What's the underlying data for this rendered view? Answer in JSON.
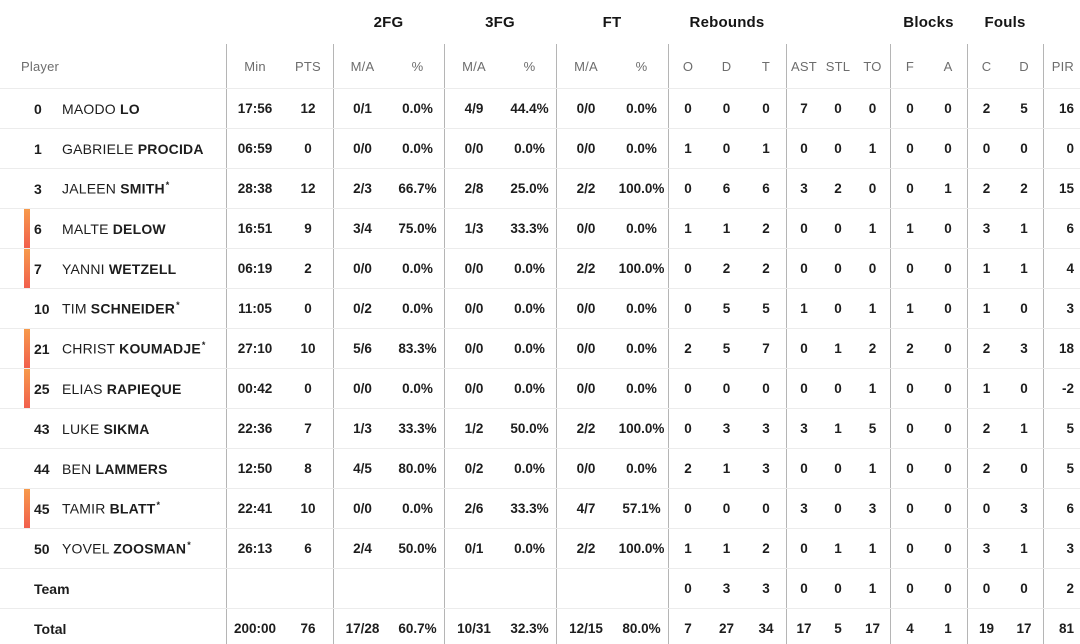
{
  "table": {
    "group_headers": {
      "fg2": "2FG",
      "fg3": "3FG",
      "ft": "FT",
      "rebounds": "Rebounds",
      "blocks": "Blocks",
      "fouls": "Fouls"
    },
    "column_headers": {
      "player": "Player",
      "min": "Min",
      "pts": "PTS",
      "fg2_ma": "M/A",
      "fg2_pct": "%",
      "fg3_ma": "M/A",
      "fg3_pct": "%",
      "ft_ma": "M/A",
      "ft_pct": "%",
      "reb_o": "O",
      "reb_d": "D",
      "reb_t": "T",
      "ast": "AST",
      "stl": "STL",
      "to": "TO",
      "blk_f": "F",
      "blk_a": "A",
      "foul_c": "C",
      "foul_d": "D",
      "pir": "PIR"
    },
    "column_keys": [
      "min",
      "pts",
      "fg2_ma",
      "fg2_pct",
      "fg3_ma",
      "fg3_pct",
      "ft_ma",
      "ft_pct",
      "reb_o",
      "reb_d",
      "reb_t",
      "ast",
      "stl",
      "to",
      "blk_f",
      "blk_a",
      "foul_c",
      "foul_d",
      "pir"
    ],
    "separator_keys": [
      "min",
      "fg2_ma",
      "fg3_ma",
      "ft_ma",
      "reb_o",
      "ast",
      "blk_f",
      "foul_c",
      "pir"
    ],
    "starter_mark": "*",
    "colors": {
      "on_court_marker_top": "#f79a4b",
      "on_court_marker_bottom": "#f15f4d",
      "vertical_line": "#b5b5b5",
      "horizontal_line": "#ececec"
    },
    "players": [
      {
        "number": "0",
        "first": "MAODO",
        "last": "LO",
        "starter": false,
        "on_court": false,
        "min": "17:56",
        "pts": "12",
        "fg2_ma": "0/1",
        "fg2_pct": "0.0%",
        "fg3_ma": "4/9",
        "fg3_pct": "44.4%",
        "ft_ma": "0/0",
        "ft_pct": "0.0%",
        "reb_o": "0",
        "reb_d": "0",
        "reb_t": "0",
        "ast": "7",
        "stl": "0",
        "to": "0",
        "blk_f": "0",
        "blk_a": "0",
        "foul_c": "2",
        "foul_d": "5",
        "pir": "16"
      },
      {
        "number": "1",
        "first": "GABRIELE",
        "last": "PROCIDA",
        "starter": false,
        "on_court": false,
        "min": "06:59",
        "pts": "0",
        "fg2_ma": "0/0",
        "fg2_pct": "0.0%",
        "fg3_ma": "0/0",
        "fg3_pct": "0.0%",
        "ft_ma": "0/0",
        "ft_pct": "0.0%",
        "reb_o": "1",
        "reb_d": "0",
        "reb_t": "1",
        "ast": "0",
        "stl": "0",
        "to": "1",
        "blk_f": "0",
        "blk_a": "0",
        "foul_c": "0",
        "foul_d": "0",
        "pir": "0"
      },
      {
        "number": "3",
        "first": "JALEEN",
        "last": "SMITH",
        "starter": true,
        "on_court": false,
        "min": "28:38",
        "pts": "12",
        "fg2_ma": "2/3",
        "fg2_pct": "66.7%",
        "fg3_ma": "2/8",
        "fg3_pct": "25.0%",
        "ft_ma": "2/2",
        "ft_pct": "100.0%",
        "reb_o": "0",
        "reb_d": "6",
        "reb_t": "6",
        "ast": "3",
        "stl": "2",
        "to": "0",
        "blk_f": "0",
        "blk_a": "1",
        "foul_c": "2",
        "foul_d": "2",
        "pir": "15"
      },
      {
        "number": "6",
        "first": "MALTE",
        "last": "DELOW",
        "starter": false,
        "on_court": true,
        "min": "16:51",
        "pts": "9",
        "fg2_ma": "3/4",
        "fg2_pct": "75.0%",
        "fg3_ma": "1/3",
        "fg3_pct": "33.3%",
        "ft_ma": "0/0",
        "ft_pct": "0.0%",
        "reb_o": "1",
        "reb_d": "1",
        "reb_t": "2",
        "ast": "0",
        "stl": "0",
        "to": "1",
        "blk_f": "1",
        "blk_a": "0",
        "foul_c": "3",
        "foul_d": "1",
        "pir": "6"
      },
      {
        "number": "7",
        "first": "YANNI",
        "last": "WETZELL",
        "starter": false,
        "on_court": true,
        "min": "06:19",
        "pts": "2",
        "fg2_ma": "0/0",
        "fg2_pct": "0.0%",
        "fg3_ma": "0/0",
        "fg3_pct": "0.0%",
        "ft_ma": "2/2",
        "ft_pct": "100.0%",
        "reb_o": "0",
        "reb_d": "2",
        "reb_t": "2",
        "ast": "0",
        "stl": "0",
        "to": "0",
        "blk_f": "0",
        "blk_a": "0",
        "foul_c": "1",
        "foul_d": "1",
        "pir": "4"
      },
      {
        "number": "10",
        "first": "TIM",
        "last": "SCHNEIDER",
        "starter": true,
        "on_court": false,
        "min": "11:05",
        "pts": "0",
        "fg2_ma": "0/2",
        "fg2_pct": "0.0%",
        "fg3_ma": "0/0",
        "fg3_pct": "0.0%",
        "ft_ma": "0/0",
        "ft_pct": "0.0%",
        "reb_o": "0",
        "reb_d": "5",
        "reb_t": "5",
        "ast": "1",
        "stl": "0",
        "to": "1",
        "blk_f": "1",
        "blk_a": "0",
        "foul_c": "1",
        "foul_d": "0",
        "pir": "3"
      },
      {
        "number": "21",
        "first": "CHRIST",
        "last": "KOUMADJE",
        "starter": true,
        "on_court": true,
        "min": "27:10",
        "pts": "10",
        "fg2_ma": "5/6",
        "fg2_pct": "83.3%",
        "fg3_ma": "0/0",
        "fg3_pct": "0.0%",
        "ft_ma": "0/0",
        "ft_pct": "0.0%",
        "reb_o": "2",
        "reb_d": "5",
        "reb_t": "7",
        "ast": "0",
        "stl": "1",
        "to": "2",
        "blk_f": "2",
        "blk_a": "0",
        "foul_c": "2",
        "foul_d": "3",
        "pir": "18"
      },
      {
        "number": "25",
        "first": "ELIAS",
        "last": "RAPIEQUE",
        "starter": false,
        "on_court": true,
        "min": "00:42",
        "pts": "0",
        "fg2_ma": "0/0",
        "fg2_pct": "0.0%",
        "fg3_ma": "0/0",
        "fg3_pct": "0.0%",
        "ft_ma": "0/0",
        "ft_pct": "0.0%",
        "reb_o": "0",
        "reb_d": "0",
        "reb_t": "0",
        "ast": "0",
        "stl": "0",
        "to": "1",
        "blk_f": "0",
        "blk_a": "0",
        "foul_c": "1",
        "foul_d": "0",
        "pir": "-2"
      },
      {
        "number": "43",
        "first": "LUKE",
        "last": "SIKMA",
        "starter": false,
        "on_court": false,
        "min": "22:36",
        "pts": "7",
        "fg2_ma": "1/3",
        "fg2_pct": "33.3%",
        "fg3_ma": "1/2",
        "fg3_pct": "50.0%",
        "ft_ma": "2/2",
        "ft_pct": "100.0%",
        "reb_o": "0",
        "reb_d": "3",
        "reb_t": "3",
        "ast": "3",
        "stl": "1",
        "to": "5",
        "blk_f": "0",
        "blk_a": "0",
        "foul_c": "2",
        "foul_d": "1",
        "pir": "5"
      },
      {
        "number": "44",
        "first": "BEN",
        "last": "LAMMERS",
        "starter": false,
        "on_court": false,
        "min": "12:50",
        "pts": "8",
        "fg2_ma": "4/5",
        "fg2_pct": "80.0%",
        "fg3_ma": "0/2",
        "fg3_pct": "0.0%",
        "ft_ma": "0/0",
        "ft_pct": "0.0%",
        "reb_o": "2",
        "reb_d": "1",
        "reb_t": "3",
        "ast": "0",
        "stl": "0",
        "to": "1",
        "blk_f": "0",
        "blk_a": "0",
        "foul_c": "2",
        "foul_d": "0",
        "pir": "5"
      },
      {
        "number": "45",
        "first": "TAMIR",
        "last": "BLATT",
        "starter": true,
        "on_court": true,
        "min": "22:41",
        "pts": "10",
        "fg2_ma": "0/0",
        "fg2_pct": "0.0%",
        "fg3_ma": "2/6",
        "fg3_pct": "33.3%",
        "ft_ma": "4/7",
        "ft_pct": "57.1%",
        "reb_o": "0",
        "reb_d": "0",
        "reb_t": "0",
        "ast": "3",
        "stl": "0",
        "to": "3",
        "blk_f": "0",
        "blk_a": "0",
        "foul_c": "0",
        "foul_d": "3",
        "pir": "6"
      },
      {
        "number": "50",
        "first": "YOVEL",
        "last": "ZOOSMAN",
        "starter": true,
        "on_court": false,
        "min": "26:13",
        "pts": "6",
        "fg2_ma": "2/4",
        "fg2_pct": "50.0%",
        "fg3_ma": "0/1",
        "fg3_pct": "0.0%",
        "ft_ma": "2/2",
        "ft_pct": "100.0%",
        "reb_o": "1",
        "reb_d": "1",
        "reb_t": "2",
        "ast": "0",
        "stl": "1",
        "to": "1",
        "blk_f": "0",
        "blk_a": "0",
        "foul_c": "3",
        "foul_d": "1",
        "pir": "3"
      }
    ],
    "team_row": {
      "label": "Team",
      "reb_o": "0",
      "reb_d": "3",
      "reb_t": "3",
      "ast": "0",
      "stl": "0",
      "to": "1",
      "blk_f": "0",
      "blk_a": "0",
      "foul_c": "0",
      "foul_d": "0",
      "pir": "2"
    },
    "total_row": {
      "label": "Total",
      "min": "200:00",
      "pts": "76",
      "fg2_ma": "17/28",
      "fg2_pct": "60.7%",
      "fg3_ma": "10/31",
      "fg3_pct": "32.3%",
      "ft_ma": "12/15",
      "ft_pct": "80.0%",
      "reb_o": "7",
      "reb_d": "27",
      "reb_t": "34",
      "ast": "17",
      "stl": "5",
      "to": "17",
      "blk_f": "4",
      "blk_a": "1",
      "foul_c": "19",
      "foul_d": "17",
      "pir": "81"
    }
  }
}
